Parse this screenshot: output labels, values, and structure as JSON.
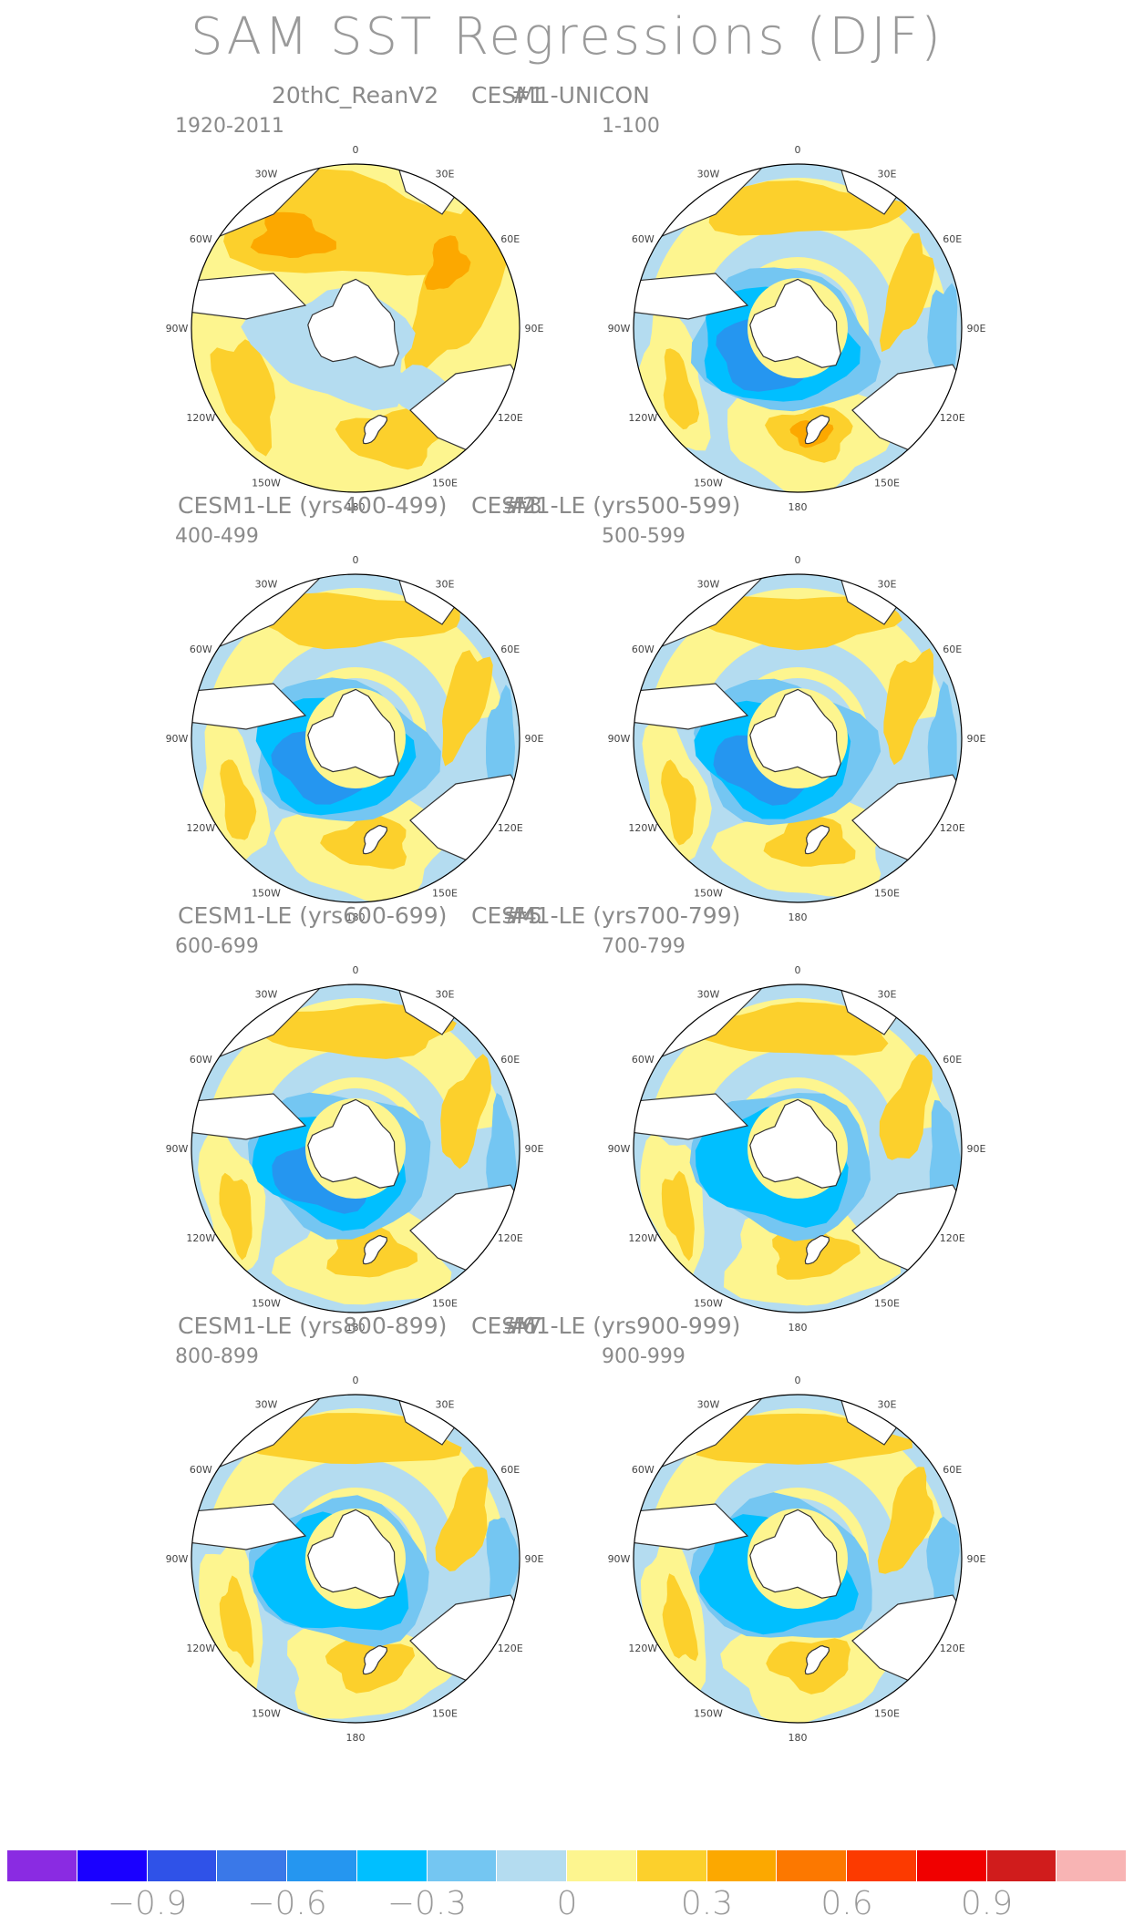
{
  "title": "SAM SST Regressions (DJF)",
  "panels": [
    {
      "title": "20thC_ReanV2",
      "number": "",
      "period": "1920-2011",
      "style": "obs"
    },
    {
      "title": "CESM1-UNICON",
      "number": "#1",
      "period": "1-100",
      "style": "unicon"
    },
    {
      "title": "CESM1-LE (yrs400-499)",
      "number": "#2",
      "period": "400-499",
      "style": "le"
    },
    {
      "title": "CESM1-LE (yrs500-599)",
      "number": "#3",
      "period": "500-599",
      "style": "le"
    },
    {
      "title": "CESM1-LE (yrs600-699)",
      "number": "#4",
      "period": "600-699",
      "style": "le"
    },
    {
      "title": "CESM1-LE (yrs700-799)",
      "number": "#5",
      "period": "700-799",
      "style": "le"
    },
    {
      "title": "CESM1-LE (yrs800-899)",
      "number": "#6",
      "period": "800-899",
      "style": "le"
    },
    {
      "title": "CESM1-LE (yrs900-999)",
      "number": "#7",
      "period": "900-999",
      "style": "le"
    }
  ],
  "longitude_labels": [
    "0",
    "30E",
    "60E",
    "90E",
    "120E",
    "150E",
    "180",
    "150W",
    "120W",
    "90W",
    "60W",
    "30W"
  ],
  "colorbar": {
    "colors": [
      "#8a2be2",
      "#1a00ff",
      "#2f52e8",
      "#3a78e8",
      "#2596f0",
      "#00bfff",
      "#74c6f2",
      "#b4dcf0",
      "#fdf58f",
      "#fcd02c",
      "#fca800",
      "#fc7800",
      "#fc3a00",
      "#f00000",
      "#d01c1c",
      "#f8b4b4"
    ],
    "labels": [
      "-0.9",
      "-0.6",
      "-0.3",
      "0",
      "0.3",
      "0.6",
      "0.9"
    ]
  }
}
